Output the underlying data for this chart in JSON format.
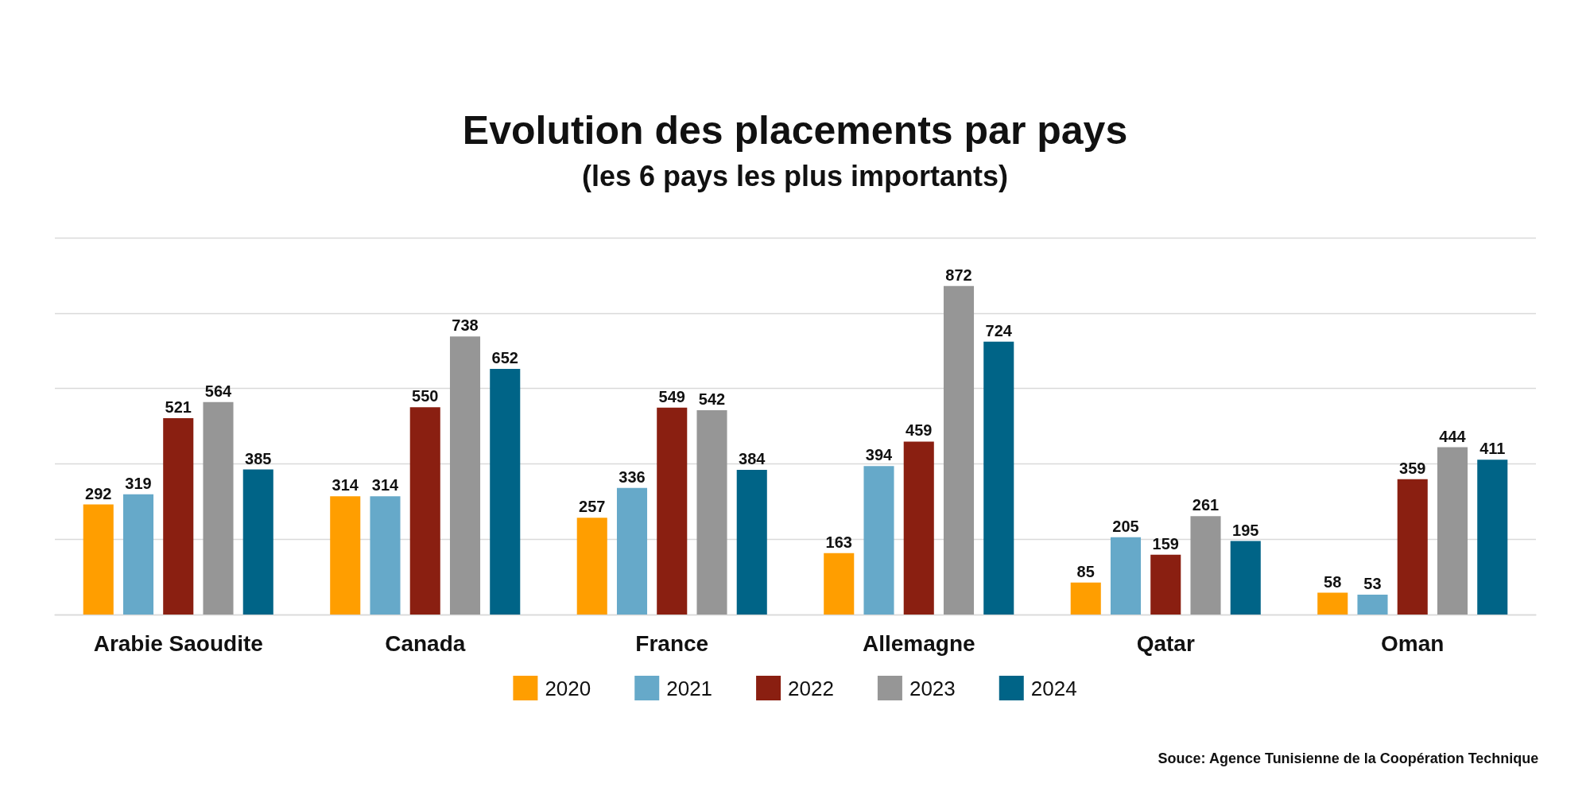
{
  "chart_data": {
    "type": "bar",
    "title": "Evolution des placements par pays",
    "subtitle": "(les 6 pays les plus importants)",
    "categories": [
      "Arabie Saoudite",
      "Canada",
      "France",
      "Allemagne",
      "Qatar",
      "Oman"
    ],
    "series": [
      {
        "name": "2020",
        "color": "#ff9e00",
        "values": [
          292,
          314,
          257,
          163,
          85,
          58
        ]
      },
      {
        "name": "2021",
        "color": "#66a9c9",
        "values": [
          319,
          314,
          336,
          394,
          205,
          53
        ]
      },
      {
        "name": "2022",
        "color": "#8a1f11",
        "values": [
          521,
          550,
          549,
          459,
          159,
          359
        ]
      },
      {
        "name": "2023",
        "color": "#969696",
        "values": [
          564,
          738,
          542,
          872,
          261,
          444
        ]
      },
      {
        "name": "2024",
        "color": "#006487",
        "values": [
          385,
          652,
          384,
          724,
          195,
          411
        ]
      }
    ],
    "ylim": [
      0,
      1000
    ],
    "yticks": [
      {
        "value": 0,
        "label": null
      },
      {
        "value": 200,
        "label": null
      },
      {
        "value": 400,
        "label": null
      },
      {
        "value": 600,
        "label": null
      },
      {
        "value": 800,
        "label": null
      },
      {
        "value": 1000,
        "label": null
      }
    ],
    "grid": "y",
    "legend": "bottom",
    "tick_labels": "x",
    "data_labels": true,
    "annotations": [
      "Souce: Agence Tunisienne de la Coopération Technique"
    ]
  }
}
